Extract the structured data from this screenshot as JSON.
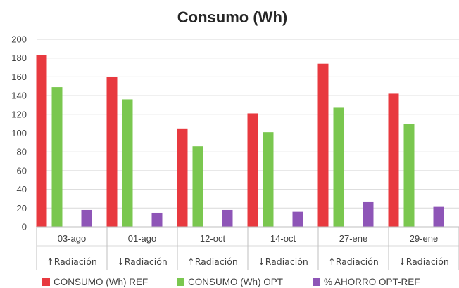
{
  "chart_data": {
    "type": "bar",
    "title": "Consumo (Wh)",
    "categories": [
      "03-ago",
      "01-ago",
      "12-oct",
      "14-oct",
      "27-ene",
      "29-ene"
    ],
    "subcategories": [
      "↑Radiación",
      "↓Radiación",
      "↑Radiación",
      "↓Radiación",
      "↑Radiación",
      "↓Radiación"
    ],
    "series": [
      {
        "name": "CONSUMO (Wh) REF",
        "color": "#e8393f",
        "values": [
          183,
          160,
          105,
          121,
          174,
          142
        ]
      },
      {
        "name": "CONSUMO (Wh) OPT",
        "color": "#7ac74f",
        "values": [
          149,
          136,
          86,
          101,
          127,
          110
        ]
      },
      {
        "name": "% AHORRO OPT-REF",
        "color": "#8e55b7",
        "values": [
          18,
          15,
          18,
          16,
          27,
          22
        ]
      }
    ],
    "ylim": [
      0,
      200
    ],
    "yticks": [
      0,
      20,
      40,
      60,
      80,
      100,
      120,
      140,
      160,
      180,
      200
    ],
    "grid": true,
    "legend": "bottom"
  }
}
